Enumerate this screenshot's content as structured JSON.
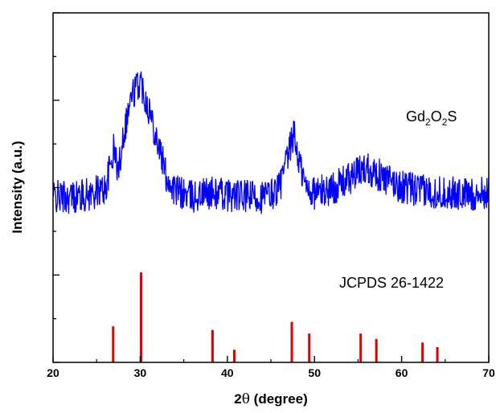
{
  "chart_data": {
    "type": "line",
    "xlabel_prefix": "2",
    "xlabel_theta": "θ",
    "xlabel_suffix": " (degree)",
    "ylabel": "Intensity (a.u.)",
    "xlim": [
      20,
      70
    ],
    "xticks": [
      20,
      30,
      40,
      50,
      60,
      70
    ],
    "yticks_labeled": false,
    "grid": false,
    "colors": {
      "pattern": "#0000ff",
      "reference": "#e00000",
      "axis": "#000000"
    },
    "series": [
      {
        "style": "line",
        "noise_amplitude": 0.085,
        "profile": [
          [
            20,
            0.0
          ],
          [
            22,
            0.0
          ],
          [
            24,
            0.01
          ],
          [
            26,
            0.04
          ],
          [
            27,
            0.24
          ],
          [
            27.5,
            0.12
          ],
          [
            28,
            0.3
          ],
          [
            29,
            0.5
          ],
          [
            30,
            0.58
          ],
          [
            31,
            0.44
          ],
          [
            32,
            0.28
          ],
          [
            33,
            0.1
          ],
          [
            34,
            0.03
          ],
          [
            36,
            0.0
          ],
          [
            38,
            0.02
          ],
          [
            40,
            0.01
          ],
          [
            42,
            0.0
          ],
          [
            44,
            0.0
          ],
          [
            45,
            0.01
          ],
          [
            46,
            0.05
          ],
          [
            47,
            0.2
          ],
          [
            47.6,
            0.32
          ],
          [
            48.2,
            0.18
          ],
          [
            49,
            0.05
          ],
          [
            50,
            0.02
          ],
          [
            52,
            0.04
          ],
          [
            54,
            0.09
          ],
          [
            55,
            0.12
          ],
          [
            56,
            0.15
          ],
          [
            57,
            0.12
          ],
          [
            58,
            0.09
          ],
          [
            60,
            0.05
          ],
          [
            62,
            0.03
          ],
          [
            65,
            0.02
          ],
          [
            68,
            0.01
          ],
          [
            70,
            0.02
          ]
        ]
      },
      {
        "style": "stick",
        "positions": [
          26.9,
          30.1,
          38.3,
          40.8,
          47.4,
          49.4,
          55.3,
          57.1,
          62.4,
          64.1
        ],
        "relative_intensity": [
          0.4,
          1.0,
          0.36,
          0.14,
          0.45,
          0.32,
          0.32,
          0.26,
          0.22,
          0.17
        ]
      }
    ],
    "annotations": {
      "pattern_label": {
        "base": "Gd",
        "sub1": "2",
        "mid": "O",
        "sub2": "2",
        "tail": "S"
      },
      "reference_label": "JCPDS 26-1422"
    }
  }
}
